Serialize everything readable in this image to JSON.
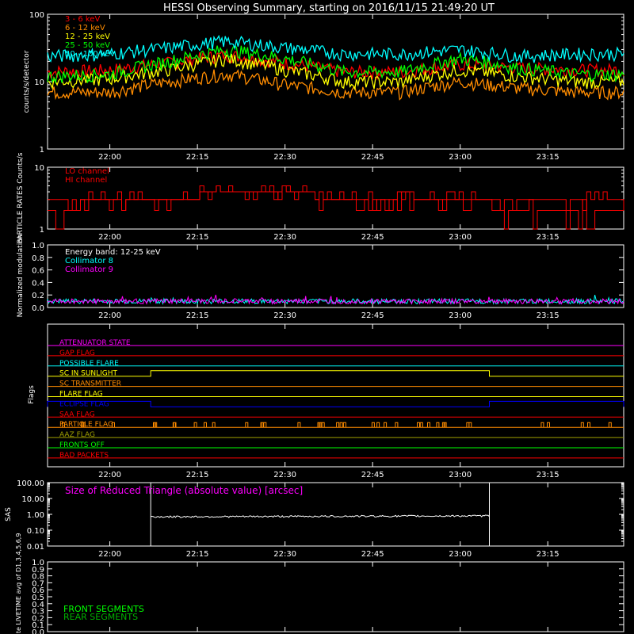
{
  "title": "HESSI Observing Summary, starting on 2016/11/15 21:49:20 UT",
  "time_ticks": [
    "22:00",
    "22:15",
    "22:30",
    "22:45",
    "23:00",
    "23:15"
  ],
  "colors": {
    "bg": "#000000",
    "axis": "#ffffff",
    "red": "#ff0000",
    "orange": "#ff8c00",
    "yellow": "#ffff00",
    "green": "#00ff00",
    "cyan": "#00ffff",
    "magenta": "#ff00ff",
    "blue": "#0000ff",
    "olive": "#a0a000",
    "darkgreen": "#00b000"
  },
  "chart_data": [
    {
      "id": "count-rates",
      "type": "line",
      "ylabel": "counts/s/detector",
      "yscale": "log",
      "ylim": [
        1,
        100
      ],
      "ytick_labels": [
        "1",
        "10",
        "100"
      ],
      "x": [
        "21:49:20",
        "22:00",
        "22:10",
        "22:20",
        "22:30",
        "22:40",
        "22:50",
        "23:00",
        "23:10",
        "23:20",
        "23:28"
      ],
      "series": [
        {
          "name": "3 - 6 keV",
          "color": "#ff0000",
          "values": [
            14,
            15,
            19,
            25,
            19,
            14,
            14,
            18,
            16,
            15,
            15
          ]
        },
        {
          "name": "6 - 12 keV",
          "color": "#ff8c00",
          "values": [
            7,
            7,
            10,
            13,
            9,
            7,
            7,
            10,
            8,
            7,
            7
          ]
        },
        {
          "name": "12 - 25 keV",
          "color": "#ffff00",
          "values": [
            10,
            11,
            15,
            22,
            15,
            10,
            10,
            15,
            12,
            10,
            10
          ]
        },
        {
          "name": "25 - 50 keV",
          "color": "#00ff00",
          "values": [
            12,
            13,
            20,
            30,
            22,
            14,
            14,
            22,
            16,
            13,
            13
          ]
        },
        {
          "name": "50 - 100 keV",
          "color": "#00ffff",
          "values": [
            24,
            26,
            32,
            40,
            32,
            26,
            26,
            30,
            24,
            26,
            26
          ]
        }
      ]
    },
    {
      "id": "particle-rates",
      "type": "line",
      "ylabel": "PARTICLE RATES Counts/s",
      "yscale": "log",
      "ylim": [
        1,
        10
      ],
      "ytick_labels": [
        "1",
        "10"
      ],
      "x": [
        "21:49:20",
        "22:00",
        "22:10",
        "22:20",
        "22:30",
        "22:40",
        "22:50",
        "23:00",
        "23:10",
        "23:20",
        "23:28"
      ],
      "series": [
        {
          "name": "LO channel",
          "color": "#ff0000",
          "values": [
            3,
            3,
            3,
            4,
            4,
            3,
            3,
            3,
            3,
            3,
            3
          ]
        },
        {
          "name": "HI channel",
          "color": "#ff0000",
          "values": [
            2,
            3,
            3,
            4,
            4,
            3,
            3,
            3,
            2,
            2,
            2
          ]
        }
      ]
    },
    {
      "id": "modulation",
      "type": "line",
      "ylabel": "Normalized modulation",
      "ylim": [
        0,
        1
      ],
      "ytick_labels": [
        "0.0",
        "0.2",
        "0.4",
        "0.6",
        "0.8",
        "1.0"
      ],
      "annotation": "Energy band: 12-25 keV",
      "series": [
        {
          "name": "Collimator 8",
          "color": "#00ffff",
          "mean": 0.1
        },
        {
          "name": "Collimator 9",
          "color": "#ff00ff",
          "mean": 0.1
        }
      ]
    },
    {
      "id": "flags",
      "type": "line",
      "ylabel": "Flags",
      "flags": [
        {
          "name": "ATTENUATOR STATE",
          "color": "#ff00ff"
        },
        {
          "name": "GAP FLAG",
          "color": "#ff0000"
        },
        {
          "name": "POSSIBLE FLARE",
          "color": "#00ffff"
        },
        {
          "name": "SC IN SUNLIGHT",
          "color": "#ffff00",
          "on": [
            [
              "22:07",
              "23:05"
            ]
          ]
        },
        {
          "name": "SC TRANSMITTER",
          "color": "#ff8c00"
        },
        {
          "name": "FLARE FLAG",
          "color": "#ffff00"
        },
        {
          "name": "ECLIPSE FLAG",
          "color": "#0000ff",
          "on": [
            [
              "21:49:20",
              "22:07"
            ],
            [
              "23:05",
              "23:28"
            ]
          ]
        },
        {
          "name": "SAA FLAG",
          "color": "#ff0000"
        },
        {
          "name": "PARTICLE FLAG",
          "color": "#ff8c00"
        },
        {
          "name": "AAZ FLAG",
          "color": "#a0a000"
        },
        {
          "name": "FRONTS OFF",
          "color": "#00ff00"
        },
        {
          "name": "BAD PACKETS",
          "color": "#ff0000"
        }
      ]
    },
    {
      "id": "sas",
      "type": "line",
      "ylabel": "SAS",
      "yscale": "log",
      "ylim": [
        0.01,
        100
      ],
      "ytick_labels": [
        "0.01",
        "0.10",
        "1.00",
        "10.00",
        "100.00"
      ],
      "annotation": "Size of Reduced Triangle (absolute value) [arcsec]",
      "series": [
        {
          "name": "Size of Reduced Triangle",
          "color": "#ffffff",
          "x": [
            "22:07",
            "23:05"
          ],
          "values": [
            0.7,
            0.8
          ]
        }
      ]
    },
    {
      "id": "livetime",
      "type": "line",
      "ylabel": "Mon. Rate LIVETIME avg of D1,3,4,5,6,9",
      "ylim": [
        0,
        1
      ],
      "ytick_labels": [
        "0.0",
        "0.1",
        "0.2",
        "0.3",
        "0.4",
        "0.5",
        "0.6",
        "0.7",
        "0.8",
        "0.9",
        "1.0"
      ],
      "series": [
        {
          "name": "FRONT SEGMENTS",
          "color": "#00ff00"
        },
        {
          "name": "REAR SEGMENTS",
          "color": "#00b000"
        }
      ]
    }
  ]
}
